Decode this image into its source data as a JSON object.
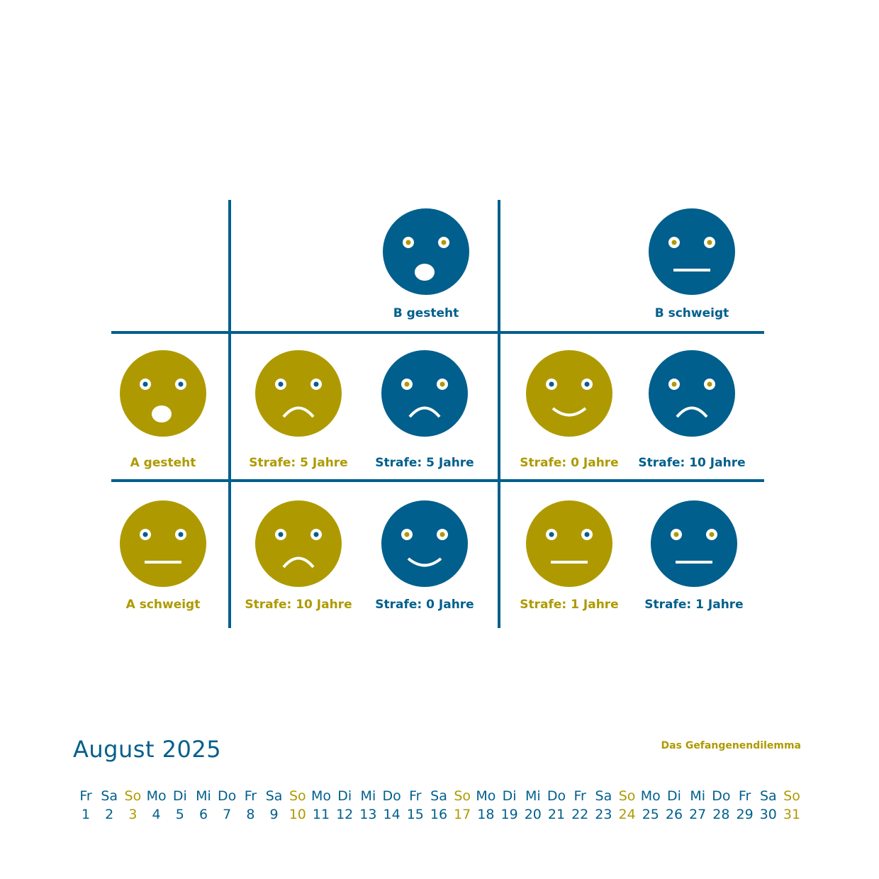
{
  "colors": {
    "a": "#ae9a00",
    "b": "#005f8c",
    "bg": "#ffffff"
  },
  "matrix": {
    "header_b": [
      {
        "id": "b-gesteht",
        "label": "B gesteht",
        "face": "shocked"
      },
      {
        "id": "b-schweigt",
        "label": "B schweigt",
        "face": "neutral"
      }
    ],
    "header_a": [
      {
        "id": "a-gesteht",
        "label": "A gesteht",
        "face": "shocked"
      },
      {
        "id": "a-schweigt",
        "label": "A schweigt",
        "face": "neutral"
      }
    ],
    "cells": [
      {
        "id": "r1c1a",
        "player": "a",
        "face": "sad",
        "label": "Strafe: 5 Jahre"
      },
      {
        "id": "r1c1b",
        "player": "b",
        "face": "sad",
        "label": "Strafe: 5 Jahre"
      },
      {
        "id": "r1c2a",
        "player": "a",
        "face": "happy",
        "label": "Strafe: 0 Jahre"
      },
      {
        "id": "r1c2b",
        "player": "b",
        "face": "sad",
        "label": "Strafe: 10 Jahre"
      },
      {
        "id": "r2c1a",
        "player": "a",
        "face": "sad",
        "label": "Strafe: 10 Jahre"
      },
      {
        "id": "r2c1b",
        "player": "b",
        "face": "happy",
        "label": "Strafe: 0 Jahre"
      },
      {
        "id": "r2c2a",
        "player": "a",
        "face": "neutral",
        "label": "Strafe: 1 Jahre"
      },
      {
        "id": "r2c2b",
        "player": "b",
        "face": "neutral",
        "label": "Strafe: 1 Jahre"
      }
    ]
  },
  "footer": {
    "month": "August 2025",
    "topic": "Das Gefangenendilemma"
  },
  "calendar": [
    {
      "dn": "Fr",
      "d": "1"
    },
    {
      "dn": "Sa",
      "d": "2"
    },
    {
      "dn": "So",
      "d": "3"
    },
    {
      "dn": "Mo",
      "d": "4"
    },
    {
      "dn": "Di",
      "d": "5"
    },
    {
      "dn": "Mi",
      "d": "6"
    },
    {
      "dn": "Do",
      "d": "7"
    },
    {
      "dn": "Fr",
      "d": "8"
    },
    {
      "dn": "Sa",
      "d": "9"
    },
    {
      "dn": "So",
      "d": "10"
    },
    {
      "dn": "Mo",
      "d": "11"
    },
    {
      "dn": "Di",
      "d": "12"
    },
    {
      "dn": "Mi",
      "d": "13"
    },
    {
      "dn": "Do",
      "d": "14"
    },
    {
      "dn": "Fr",
      "d": "15"
    },
    {
      "dn": "Sa",
      "d": "16"
    },
    {
      "dn": "So",
      "d": "17"
    },
    {
      "dn": "Mo",
      "d": "18"
    },
    {
      "dn": "Di",
      "d": "19"
    },
    {
      "dn": "Mi",
      "d": "20"
    },
    {
      "dn": "Do",
      "d": "21"
    },
    {
      "dn": "Fr",
      "d": "22"
    },
    {
      "dn": "Sa",
      "d": "23"
    },
    {
      "dn": "So",
      "d": "24"
    },
    {
      "dn": "Mo",
      "d": "25"
    },
    {
      "dn": "Di",
      "d": "26"
    },
    {
      "dn": "Mi",
      "d": "27"
    },
    {
      "dn": "Do",
      "d": "28"
    },
    {
      "dn": "Fr",
      "d": "29"
    },
    {
      "dn": "Sa",
      "d": "30"
    },
    {
      "dn": "So",
      "d": "31"
    }
  ]
}
